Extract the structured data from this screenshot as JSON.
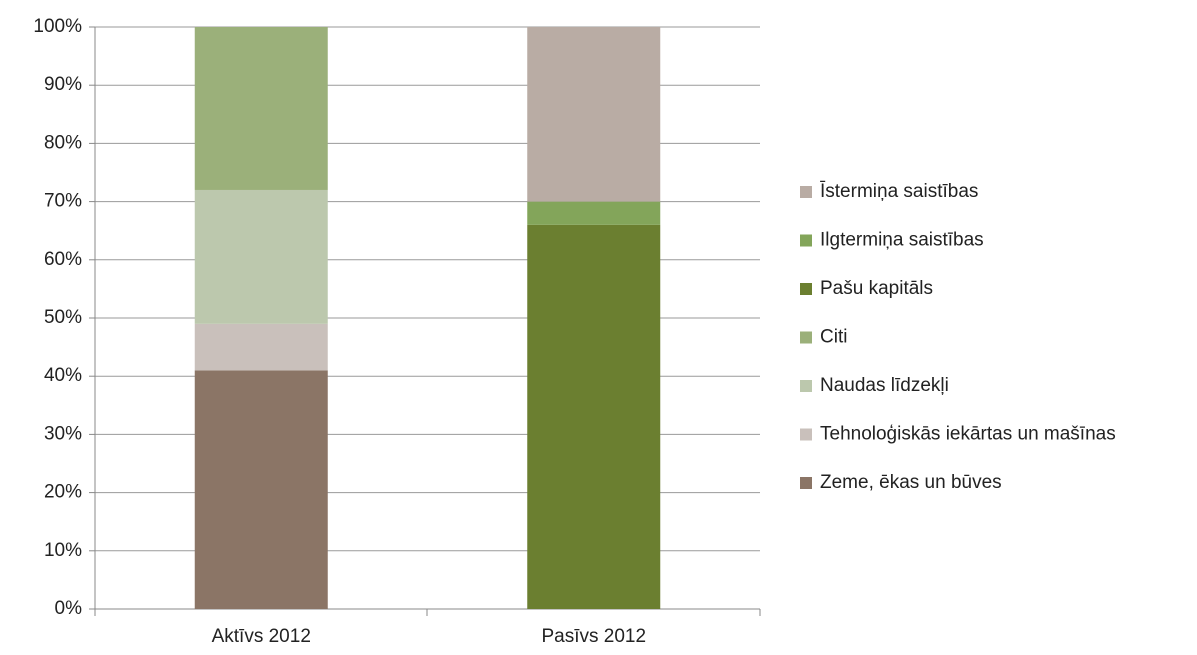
{
  "chart_data": {
    "type": "stacked_bar",
    "categories": [
      "Aktīvs 2012",
      "Pasīvs 2012"
    ],
    "series": [
      {
        "name": "Zeme, ēkas un būves",
        "color": "#8b7566",
        "values": [
          41,
          0
        ]
      },
      {
        "name": "Tehnoloģiskās iekārtas un mašīnas",
        "color": "#c9c0bb",
        "values": [
          8,
          0
        ]
      },
      {
        "name": "Naudas līdzekļi",
        "color": "#bcc8ad",
        "values": [
          23,
          0
        ]
      },
      {
        "name": "Citi",
        "color": "#9bb07a",
        "values": [
          28,
          0
        ]
      },
      {
        "name": "Pašu kapitāls",
        "color": "#6b7f30",
        "values": [
          0,
          66
        ]
      },
      {
        "name": "Ilgtermiņa saistības",
        "color": "#83a55a",
        "values": [
          0,
          4
        ]
      },
      {
        "name": "Īstermiņa saistības",
        "color": "#b9aca4",
        "values": [
          0,
          30
        ]
      }
    ],
    "ylim": [
      0,
      100
    ],
    "yticks": [
      {
        "value": 0,
        "label": "0%"
      },
      {
        "value": 10,
        "label": "10%"
      },
      {
        "value": 20,
        "label": "20%"
      },
      {
        "value": 30,
        "label": "30%"
      },
      {
        "value": 40,
        "label": "40%"
      },
      {
        "value": 50,
        "label": "50%"
      },
      {
        "value": 60,
        "label": "60%"
      },
      {
        "value": 70,
        "label": "70%"
      },
      {
        "value": 80,
        "label": "80%"
      },
      {
        "value": 90,
        "label": "90%"
      },
      {
        "value": 100,
        "label": "100%"
      }
    ],
    "grid": true,
    "legend": "right"
  }
}
